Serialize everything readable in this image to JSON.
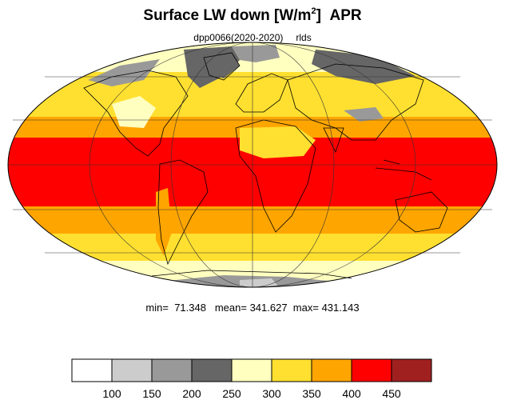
{
  "title": {
    "main": "Surface LW down [W/m",
    "superscript": "2",
    "bracket_close": "]",
    "month": "APR"
  },
  "subtitle": {
    "run": "dpp0066(2020-2020)",
    "variable": "rlds"
  },
  "stats": {
    "min_label": "min=",
    "min_value": "71.348",
    "mean_label": "mean=",
    "mean_value": "341.627",
    "max_label": "max=",
    "max_value": "431.143"
  },
  "colorbar": {
    "colors": [
      "#ffffff",
      "#cccccc",
      "#999999",
      "#666666",
      "#ffffc0",
      "#ffe030",
      "#ffa500",
      "#ff0000",
      "#a02020"
    ],
    "tick_labels": [
      "100",
      "150",
      "200",
      "250",
      "300",
      "350",
      "400",
      "450"
    ]
  },
  "map": {
    "projection": "Mollweide",
    "gridlines": true,
    "coastlines": true
  }
}
